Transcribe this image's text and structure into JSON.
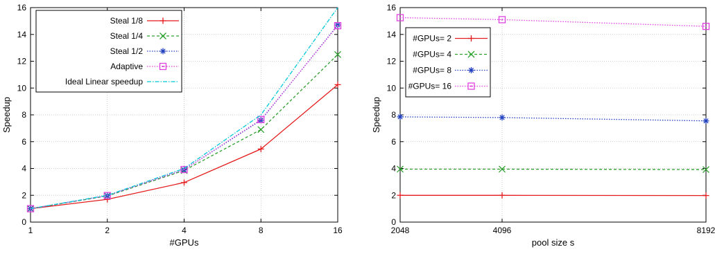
{
  "chart_data": [
    {
      "type": "line",
      "xlabel": "#GPUs",
      "ylabel": "Speedup",
      "x_scale": "log2",
      "x": [
        1,
        2,
        4,
        8,
        16
      ],
      "x_tick_labels": [
        "1",
        "2",
        "4",
        "8",
        "16"
      ],
      "xlim": [
        1,
        16
      ],
      "ylim": [
        0,
        16
      ],
      "y_ticks": [
        "0",
        "2",
        "4",
        "6",
        "8",
        "10",
        "12",
        "14",
        "16"
      ],
      "grid": true,
      "legend_position": "top-left",
      "series": [
        {
          "name": "Steal 1/8",
          "color": "#e41a1c",
          "marker": "plus",
          "dash": "solid",
          "values": [
            1.0,
            1.7,
            2.95,
            5.45,
            10.25
          ]
        },
        {
          "name": "Steal 1/4",
          "color": "#2ca02c",
          "marker": "x",
          "dash": "dashed",
          "values": [
            1.0,
            1.95,
            3.85,
            6.9,
            12.5
          ]
        },
        {
          "name": "Steal 1/2",
          "color": "#1f3fbf",
          "marker": "asterisk",
          "dash": "dotted",
          "values": [
            1.0,
            1.97,
            3.9,
            7.6,
            14.7
          ]
        },
        {
          "name": "Adaptive",
          "color": "#e040e0",
          "marker": "square",
          "dash": "dotted",
          "values": [
            1.0,
            1.98,
            3.92,
            7.65,
            14.65
          ]
        },
        {
          "name": "Ideal Linear speedup",
          "color": "#00c8d8",
          "marker": "none",
          "dash": "dashdot",
          "values": [
            1,
            2,
            4,
            8,
            16
          ]
        }
      ]
    },
    {
      "type": "line",
      "xlabel": "pool size s",
      "ylabel": "Speedup",
      "x": [
        2048,
        4096,
        8192
      ],
      "x_tick_labels": [
        "2048",
        "4096",
        "8192"
      ],
      "xlim": [
        2048,
        8192
      ],
      "ylim": [
        0,
        16
      ],
      "y_ticks": [
        "0",
        "2",
        "4",
        "6",
        "8",
        "10",
        "12",
        "14",
        "16"
      ],
      "grid": true,
      "legend_position": "upper-left",
      "series": [
        {
          "name": "#GPUs= 2",
          "color": "#e41a1c",
          "marker": "plus",
          "dash": "solid",
          "values": [
            2.0,
            2.0,
            1.98
          ]
        },
        {
          "name": "#GPUs= 4",
          "color": "#2ca02c",
          "marker": "x",
          "dash": "dashed",
          "values": [
            3.95,
            3.95,
            3.92
          ]
        },
        {
          "name": "#GPUs= 8",
          "color": "#1f3fbf",
          "marker": "asterisk",
          "dash": "dotted",
          "values": [
            7.85,
            7.8,
            7.55
          ]
        },
        {
          "name": "#GPUs= 16",
          "color": "#e040e0",
          "marker": "square",
          "dash": "dotted",
          "values": [
            15.25,
            15.1,
            14.6
          ]
        }
      ]
    }
  ]
}
